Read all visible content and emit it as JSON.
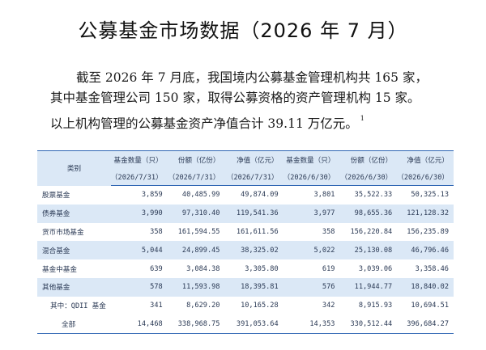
{
  "title": "公募基金市场数据（2026 年 7 月）",
  "intro": {
    "line1": "截至 2026 年 7 月底，我国境内公募基金管理机构共 165 家，",
    "line2": "其中基金管理公司 150 家，取得公募资格的资产管理机构 15 家。",
    "line3": "以上机构管理的公募基金资产净值合计 39.11 万亿元。",
    "footnote": "1"
  },
  "table": {
    "category_header": "类别",
    "column_titles": [
      "基金数量（只）",
      "份额（亿份）",
      "净值（亿元）",
      "基金数量（只）",
      "份额（亿份）",
      "净值（亿元）"
    ],
    "column_dates": [
      "（2026/7/31）",
      "（2026/7/31）",
      "（2026/7/31）",
      "（2026/6/30）",
      "（2026/6/30）",
      "（2026/6/30）"
    ],
    "rows": [
      {
        "label": "股票基金",
        "values": [
          "3,859",
          "40,485.99",
          "49,874.09",
          "3,801",
          "35,522.33",
          "50,325.13"
        ]
      },
      {
        "label": "债券基金",
        "values": [
          "3,990",
          "97,310.40",
          "119,541.36",
          "3,977",
          "98,655.36",
          "121,128.32"
        ]
      },
      {
        "label": "货币市场基金",
        "values": [
          "358",
          "161,594.55",
          "161,611.56",
          "358",
          "156,220.84",
          "156,235.89"
        ]
      },
      {
        "label": "混合基金",
        "values": [
          "5,044",
          "24,899.45",
          "38,325.02",
          "5,022",
          "25,130.08",
          "46,796.46"
        ]
      },
      {
        "label": "基金中基金",
        "values": [
          "639",
          "3,084.38",
          "3,305.80",
          "619",
          "3,039.06",
          "3,358.46"
        ]
      },
      {
        "label": "其他基金",
        "values": [
          "578",
          "11,593.98",
          "18,395.81",
          "576",
          "11,944.77",
          "18,840.02"
        ]
      },
      {
        "label": "其中：QDII 基金",
        "values": [
          "341",
          "8,629.20",
          "10,165.28",
          "342",
          "8,915.93",
          "10,694.51"
        ]
      },
      {
        "label": "全部",
        "values": [
          "14,468",
          "338,968.75",
          "391,053.64",
          "14,353",
          "330,512.44",
          "396,684.27"
        ]
      }
    ]
  },
  "colors": {
    "accent_blue": "#2f66b3",
    "shade_blue": "#dbe8f6",
    "table_text": "#2b3a55"
  }
}
